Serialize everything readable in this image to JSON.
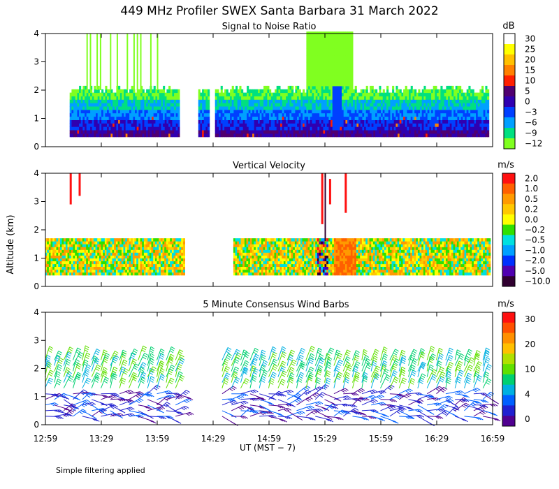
{
  "figure": {
    "title": "449 MHz Profiler SWEX Santa Barbara 31 March 2022",
    "ylabel": "Altitude (km)",
    "xlabel": "UT  (MST − 7)",
    "footnote": "Simple filtering applied"
  },
  "chart_data": [
    {
      "type": "heatmap",
      "title": "Signal to Noise Ratio",
      "xlabel": "UT  (MST − 7)",
      "ylabel": "Altitude (km)",
      "x_ticks": [
        "12:59",
        "13:29",
        "13:59",
        "14:29",
        "14:59",
        "15:29",
        "15:59",
        "16:29",
        "16:59"
      ],
      "xlim_hours": [
        12.983,
        16.983
      ],
      "ylim": [
        0,
        4
      ],
      "y_ticks": [
        "0",
        "1",
        "2",
        "3",
        "4"
      ],
      "colorbar": {
        "unit": "dB",
        "tick_labels": [
          "30",
          "25",
          "20",
          "15",
          "10",
          "5",
          "0",
          "−3",
          "−6",
          "−9",
          "−12"
        ],
        "colors": [
          "#ffffff",
          "#ffff00",
          "#ffc000",
          "#ff8000",
          "#ff2000",
          "#500070",
          "#3000b0",
          "#0040ff",
          "#00a0ff",
          "#00e080",
          "#80ff20"
        ]
      }
    },
    {
      "type": "heatmap",
      "title": "Vertical Velocity",
      "xlabel": "UT  (MST − 7)",
      "ylabel": "Altitude (km)",
      "x_ticks": [
        "12:59",
        "13:29",
        "13:59",
        "14:29",
        "14:59",
        "15:29",
        "15:59",
        "16:29",
        "16:59"
      ],
      "xlim_hours": [
        12.983,
        16.983
      ],
      "ylim": [
        0,
        4
      ],
      "y_ticks": [
        "0",
        "1",
        "2",
        "3",
        "4"
      ],
      "colorbar": {
        "unit": "m/s",
        "tick_labels": [
          "2.0",
          "1.0",
          "0.5",
          "0.2",
          "0.0",
          "−0.2",
          "−0.5",
          "−1.0",
          "−2.0",
          "−5.0",
          "−10.0"
        ],
        "colors": [
          "#ff1010",
          "#ff6000",
          "#ff9a00",
          "#ffc800",
          "#ffff00",
          "#30e000",
          "#00e0e0",
          "#00a0ff",
          "#0030ff",
          "#5000b0",
          "#300030"
        ]
      }
    },
    {
      "type": "scatter",
      "title": "5 Minute Consensus Wind Barbs",
      "xlabel": "UT  (MST − 7)",
      "ylabel": "Altitude (km)",
      "x_ticks": [
        "12:59",
        "13:29",
        "13:59",
        "14:29",
        "14:59",
        "15:29",
        "15:59",
        "16:29",
        "16:59"
      ],
      "xlim_hours": [
        12.983,
        16.983
      ],
      "ylim": [
        0,
        4
      ],
      "y_ticks": [
        "0",
        "1",
        "2",
        "3",
        "4"
      ],
      "colorbar": {
        "unit": "m/s",
        "tick_labels": [
          "30",
          "20",
          "10",
          "4",
          "0"
        ],
        "colors": [
          "#ff1010",
          "#ff5000",
          "#ff9000",
          "#ffc000",
          "#b0e000",
          "#60e000",
          "#00d070",
          "#00b0e0",
          "#0060ff",
          "#2020d0",
          "#500090"
        ]
      }
    }
  ]
}
